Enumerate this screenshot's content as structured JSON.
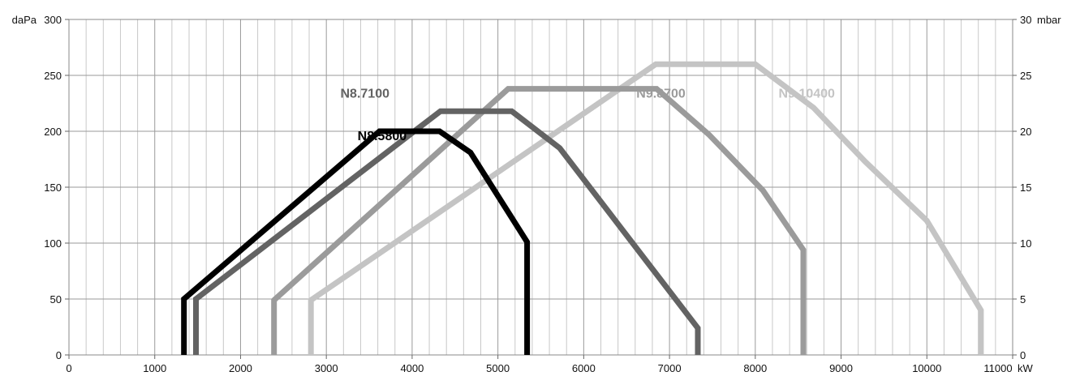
{
  "chart_data": {
    "type": "line",
    "title": "",
    "xlabel": "",
    "ylabel": "",
    "x_unit": "kW",
    "y_unit_left": "daPa",
    "y_unit_right": "mbar",
    "xlim": [
      0,
      11000
    ],
    "ylim": [
      0,
      300
    ],
    "ylim_right": [
      0,
      30
    ],
    "x_ticks": [
      "0",
      "1000",
      "2000",
      "3000",
      "4000",
      "5000",
      "6000",
      "7000",
      "8000",
      "9000",
      "10000",
      "11000"
    ],
    "y_ticks_left": [
      "0",
      "50",
      "100",
      "150",
      "200",
      "250",
      "300"
    ],
    "y_ticks_right": [
      "0",
      "5",
      "10",
      "15",
      "20",
      "25",
      "30"
    ],
    "grid": true,
    "legend": "none",
    "series": [
      {
        "name": "N8.5800",
        "color": "#000000",
        "label_at": [
          3650,
          192
        ],
        "points": [
          [
            1340,
            0
          ],
          [
            1340,
            50
          ],
          [
            3620,
            200
          ],
          [
            4320,
            200
          ],
          [
            4680,
            181
          ],
          [
            5340,
            101
          ],
          [
            5340,
            0
          ]
        ]
      },
      {
        "name": "N8.7100",
        "color": "#636363",
        "label_at": [
          3450,
          230
        ],
        "points": [
          [
            1480,
            0
          ],
          [
            1480,
            50
          ],
          [
            4330,
            218
          ],
          [
            5160,
            218
          ],
          [
            5720,
            185
          ],
          [
            7330,
            24
          ],
          [
            7330,
            0
          ]
        ]
      },
      {
        "name": "N9.8700",
        "color": "#9b9b9b",
        "label_at": [
          6900,
          230
        ],
        "points": [
          [
            2390,
            0
          ],
          [
            2390,
            49
          ],
          [
            5120,
            238
          ],
          [
            6850,
            238
          ],
          [
            7460,
            197
          ],
          [
            8090,
            147
          ],
          [
            8560,
            94
          ],
          [
            8560,
            0
          ]
        ]
      },
      {
        "name": "N9.10400",
        "color": "#c4c4c4",
        "label_at": [
          8600,
          230
        ],
        "points": [
          [
            2820,
            0
          ],
          [
            2820,
            49
          ],
          [
            6840,
            260
          ],
          [
            8000,
            260
          ],
          [
            8680,
            221
          ],
          [
            9280,
            173
          ],
          [
            10000,
            120
          ],
          [
            10630,
            40
          ],
          [
            10630,
            0
          ]
        ]
      }
    ]
  }
}
